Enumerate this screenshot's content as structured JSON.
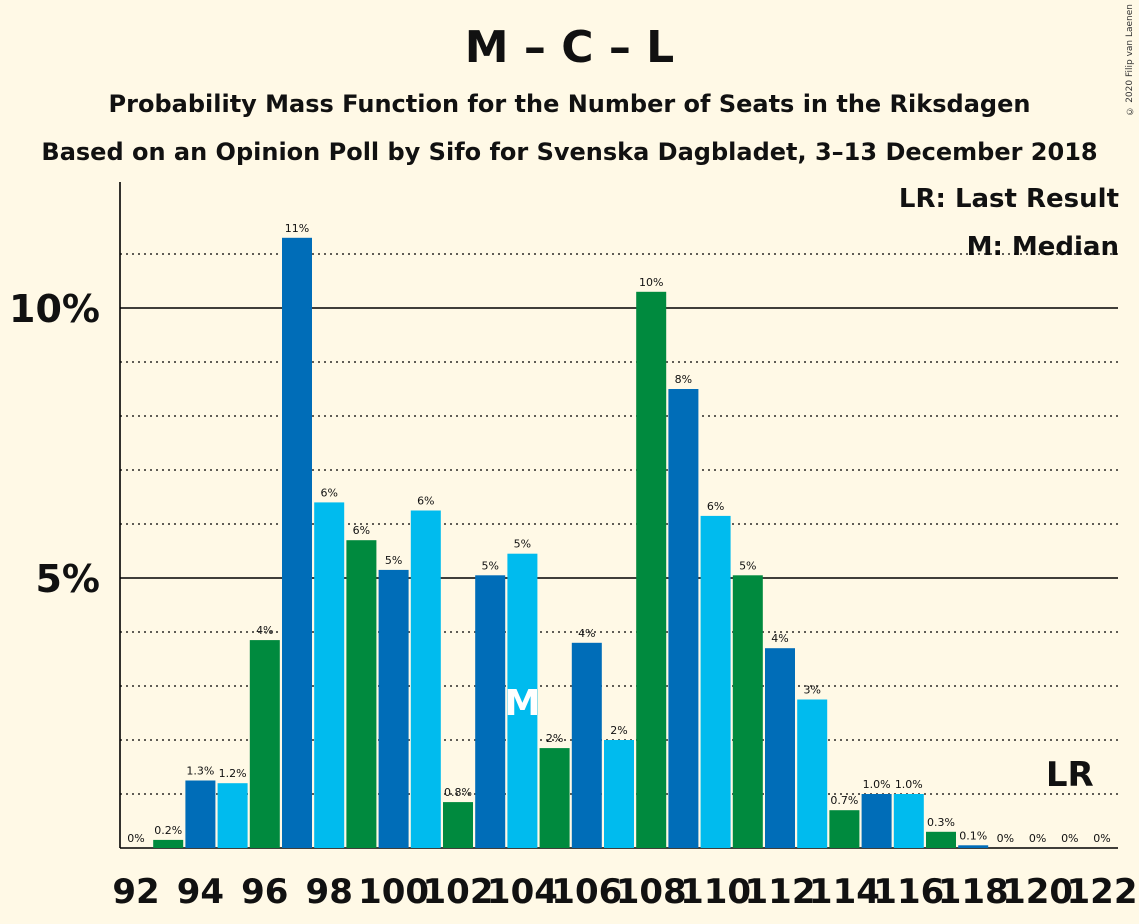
{
  "title": "M – C – L",
  "subtitle": "Probability Mass Function for the Number of Seats in the Riksdagen",
  "subtitle2": "Based on an Opinion Poll by Sifo for Svenska Dagbladet, 3–13 December 2018",
  "copyright": "© 2020 Filip van Laenen",
  "legend": {
    "last_result": "LR: Last Result",
    "median": "M: Median"
  },
  "markers": {
    "median_label": "M",
    "median_seat": 104,
    "lr_label": "LR",
    "lr_seat": 121
  },
  "colors": {
    "light_blue": "#00bbee",
    "green": "#008a3e",
    "dark_blue": "#006db8",
    "background": "#fff9e6"
  },
  "chart_data": {
    "type": "bar",
    "x": [
      92,
      93,
      94,
      95,
      96,
      97,
      98,
      99,
      100,
      101,
      102,
      103,
      104,
      105,
      106,
      107,
      108,
      109,
      110,
      111,
      112,
      113,
      114,
      115,
      116,
      117,
      118,
      119,
      120,
      121,
      122
    ],
    "values": [
      0,
      0.15,
      1.25,
      1.2,
      3.85,
      11.3,
      6.4,
      5.7,
      5.15,
      6.25,
      0.85,
      5.05,
      5.45,
      1.85,
      3.8,
      2.0,
      10.3,
      8.5,
      6.15,
      5.05,
      3.7,
      2.75,
      0.7,
      1.0,
      1.0,
      0.3,
      0.05,
      0,
      0,
      0,
      0
    ],
    "data_labels": [
      "0%",
      "0.2%",
      "1.3%",
      "1.2%",
      "4%",
      "11%",
      "6%",
      "6%",
      "5%",
      "6%",
      "0.8%",
      "5%",
      "5%",
      "2%",
      "4%",
      "2%",
      "10%",
      "8%",
      "6%",
      "5%",
      "4%",
      "3%",
      "0.7%",
      "1.0%",
      "1.0%",
      "0.3%",
      "0.1%",
      "0%",
      "0%",
      "0%",
      "0%"
    ],
    "color_cycle": [
      "light_blue",
      "green",
      "dark_blue"
    ],
    "x_tick_labels": [
      "92",
      "94",
      "96",
      "98",
      "100",
      "102",
      "104",
      "106",
      "108",
      "110",
      "112",
      "114",
      "116",
      "118",
      "120",
      "122"
    ],
    "y_tick_labels": [
      "5%",
      "10%"
    ],
    "y_ticks": [
      5,
      10
    ],
    "ylim": [
      0,
      12.3
    ],
    "grid": "dotted every 1%, solid at 5% and 10%"
  }
}
